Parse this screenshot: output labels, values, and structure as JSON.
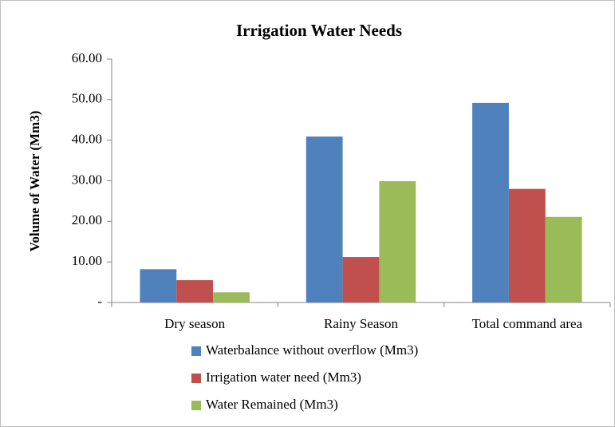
{
  "chart_data": {
    "type": "bar",
    "title": "Irrigation Water Needs",
    "y_label": "Volume of Water (Mm3)",
    "categories": [
      "Dry season",
      "Rainy Season",
      "Total command area"
    ],
    "series": [
      {
        "name": "Waterbalance without overflow (Mm3)",
        "color": "#4f81bd",
        "values": [
          8.2,
          40.9,
          49.2
        ]
      },
      {
        "name": "Irrigation water need (Mm3)",
        "color": "#c0504d",
        "values": [
          5.5,
          11.2,
          28.0
        ]
      },
      {
        "name": "Water Remained (Mm3)",
        "color": "#9bbb59",
        "values": [
          2.5,
          29.9,
          21.1
        ]
      }
    ],
    "ylim": [
      0,
      60
    ],
    "yticks": [
      {
        "value": 0,
        "label": "-"
      },
      {
        "value": 10,
        "label": "10.00"
      },
      {
        "value": 20,
        "label": "20.00"
      },
      {
        "value": 30,
        "label": "30.00"
      },
      {
        "value": 40,
        "label": "40.00"
      },
      {
        "value": 50,
        "label": "50.00"
      },
      {
        "value": 60,
        "label": "60.00"
      }
    ],
    "grid": false,
    "legend": "bottom"
  }
}
